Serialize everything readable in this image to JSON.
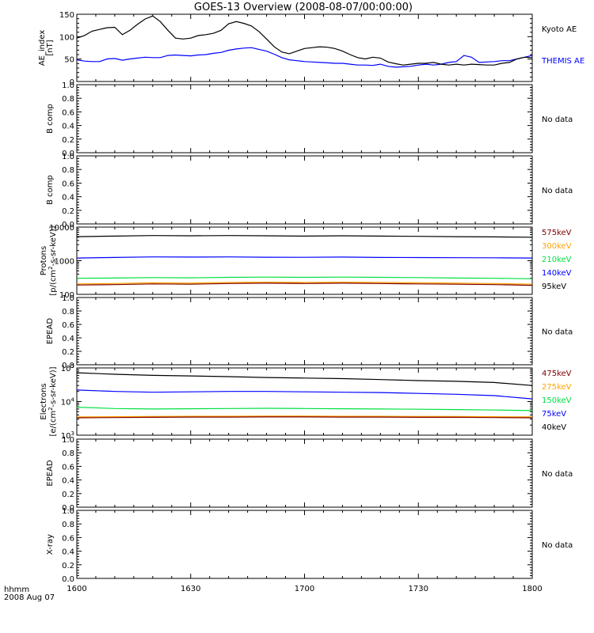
{
  "title": "GOES-13 Overview (2008-08-07/00:00:00)",
  "time_axis": {
    "ticks": [
      "1600",
      "1630",
      "1700",
      "1730",
      "1800"
    ],
    "unit_label": "hhmm",
    "date_label": "2008 Aug 07"
  },
  "chart_data": [
    {
      "type": "line",
      "panel": "ae-index",
      "ylabel": "AE_index",
      "ylabel_unit": "[nT]",
      "yticks": [
        "0",
        "50",
        "100",
        "150"
      ],
      "ylim": [
        0,
        155
      ],
      "x": [
        0,
        2,
        4,
        6,
        8,
        10,
        12,
        14,
        16,
        18,
        20,
        22,
        24,
        26,
        28,
        30,
        32,
        34,
        36,
        38,
        40,
        42,
        44,
        46,
        48,
        50,
        52,
        54,
        56,
        58,
        60,
        62,
        64,
        66,
        68,
        70,
        72,
        74,
        76,
        78,
        80,
        82,
        84,
        86,
        88,
        90,
        92,
        94,
        96,
        98,
        100,
        102,
        104,
        106,
        108,
        110,
        112,
        114,
        116,
        118,
        120
      ],
      "series": [
        {
          "name": "Kyoto AE",
          "color": "#000000",
          "values": [
            100,
            106,
            116,
            120,
            124,
            125,
            108,
            118,
            132,
            144,
            151,
            138,
            118,
            100,
            98,
            100,
            106,
            108,
            111,
            118,
            133,
            138,
            134,
            128,
            115,
            98,
            80,
            68,
            64,
            70,
            76,
            78,
            80,
            79,
            76,
            70,
            62,
            55,
            52,
            56,
            54,
            45,
            41,
            38,
            40,
            42,
            42,
            44,
            40,
            38,
            40,
            38,
            40,
            39,
            38,
            38,
            42,
            44,
            52,
            56,
            55
          ]
        },
        {
          "name": "THEMIS AE",
          "color": "#0000ff",
          "values": [
            50,
            47,
            46,
            46,
            52,
            53,
            49,
            52,
            54,
            56,
            55,
            55,
            60,
            61,
            60,
            59,
            61,
            62,
            65,
            67,
            72,
            75,
            77,
            78,
            74,
            70,
            63,
            55,
            50,
            48,
            46,
            45,
            44,
            43,
            42,
            42,
            40,
            38,
            38,
            37,
            40,
            35,
            33,
            34,
            35,
            38,
            40,
            38,
            40,
            44,
            46,
            60,
            56,
            44,
            45,
            46,
            48,
            48,
            52,
            56,
            60
          ]
        }
      ]
    },
    {
      "type": "line",
      "panel": "b-comp-1",
      "ylabel": "B comp",
      "yticks": [
        "0.0",
        "0.2",
        "0.4",
        "0.6",
        "0.8",
        "1.0"
      ],
      "ylim": [
        0,
        1
      ],
      "series": [],
      "note": "No data"
    },
    {
      "type": "line",
      "panel": "b-comp-2",
      "ylabel": "B comp",
      "yticks": [
        "0.0",
        "0.2",
        "0.4",
        "0.6",
        "0.8",
        "1.0"
      ],
      "ylim": [
        0,
        1
      ],
      "series": [],
      "note": "No data"
    },
    {
      "type": "line",
      "panel": "protons",
      "ylabel": "Protons",
      "ylabel_unit_parts": [
        "[p/(cm",
        "2",
        "-s-sr-keV)]"
      ],
      "yscale": "log",
      "yticks": [
        "100",
        "1000",
        "10000"
      ],
      "ylim": [
        100,
        10000
      ],
      "x": [
        0,
        10,
        20,
        30,
        40,
        50,
        60,
        70,
        80,
        90,
        100,
        110,
        120
      ],
      "series": [
        {
          "name": "575keV",
          "color": "#7f0000",
          "values": [
            190,
            195,
            205,
            200,
            210,
            215,
            210,
            215,
            210,
            205,
            200,
            195,
            185
          ]
        },
        {
          "name": "300keV",
          "color": "#ffa500",
          "values": [
            205,
            210,
            220,
            215,
            225,
            230,
            225,
            230,
            225,
            220,
            215,
            210,
            200
          ]
        },
        {
          "name": "210keV",
          "color": "#00e040",
          "values": [
            300,
            305,
            315,
            310,
            320,
            325,
            320,
            325,
            320,
            315,
            305,
            300,
            290
          ]
        },
        {
          "name": "140keV",
          "color": "#0000ff",
          "values": [
            1200,
            1250,
            1300,
            1280,
            1300,
            1270,
            1260,
            1280,
            1250,
            1240,
            1230,
            1220,
            1200
          ]
        },
        {
          "name": "95keV",
          "color": "#000000",
          "values": [
            5200,
            5400,
            5600,
            5500,
            5600,
            5500,
            5400,
            5500,
            5400,
            5300,
            5200,
            5100,
            5000
          ]
        }
      ]
    },
    {
      "type": "line",
      "panel": "epead-1",
      "ylabel": "EPEAD",
      "yticks": [
        "0.0",
        "0.2",
        "0.4",
        "0.6",
        "0.8",
        "1.0"
      ],
      "ylim": [
        0,
        1
      ],
      "series": [],
      "note": "No data"
    },
    {
      "type": "line",
      "panel": "electrons",
      "ylabel": "Electrons",
      "ylabel_unit_parts": [
        "[e/(cm",
        "2",
        "-s-sr-keV)]"
      ],
      "yscale": "log",
      "ytick_labels": [
        {
          "base": "10",
          "exp": "3"
        },
        {
          "base": "10",
          "exp": "4"
        },
        {
          "base": "10",
          "exp": "5"
        }
      ],
      "ylim": [
        1000,
        100000
      ],
      "x": [
        0,
        10,
        20,
        30,
        40,
        50,
        60,
        70,
        80,
        90,
        100,
        110,
        120
      ],
      "series": [
        {
          "name": "475keV",
          "color": "#7f0000",
          "values": [
            3300,
            3350,
            3400,
            3450,
            3450,
            3500,
            3500,
            3450,
            3450,
            3400,
            3400,
            3350,
            3300
          ]
        },
        {
          "name": "275keV",
          "color": "#ffa500",
          "values": [
            3500,
            3550,
            3600,
            3650,
            3650,
            3700,
            3700,
            3650,
            3650,
            3600,
            3600,
            3550,
            3500
          ]
        },
        {
          "name": "150keV",
          "color": "#00e040",
          "values": [
            6800,
            6200,
            6000,
            6100,
            6200,
            6300,
            6200,
            6100,
            6000,
            5900,
            5800,
            5600,
            5400
          ]
        },
        {
          "name": "75keV",
          "color": "#0000ff",
          "values": [
            22000,
            20000,
            19000,
            19500,
            20000,
            20000,
            19500,
            19000,
            18500,
            17500,
            16500,
            15000,
            12000
          ]
        },
        {
          "name": "40keV",
          "color": "#000000",
          "values": [
            72000,
            65000,
            60000,
            58000,
            55000,
            52000,
            50000,
            48000,
            45000,
            42000,
            40000,
            37000,
            30000
          ]
        }
      ]
    },
    {
      "type": "line",
      "panel": "epead-2",
      "ylabel": "EPEAD",
      "yticks": [
        "0.0",
        "0.2",
        "0.4",
        "0.6",
        "0.8",
        "1.0"
      ],
      "ylim": [
        0,
        1
      ],
      "series": [],
      "note": "No data"
    },
    {
      "type": "line",
      "panel": "x-ray",
      "ylabel": "X-ray",
      "yticks": [
        "0.0",
        "0.2",
        "0.4",
        "0.6",
        "0.8",
        "1.0"
      ],
      "ylim": [
        0,
        1
      ],
      "series": [],
      "note": "No data"
    }
  ]
}
